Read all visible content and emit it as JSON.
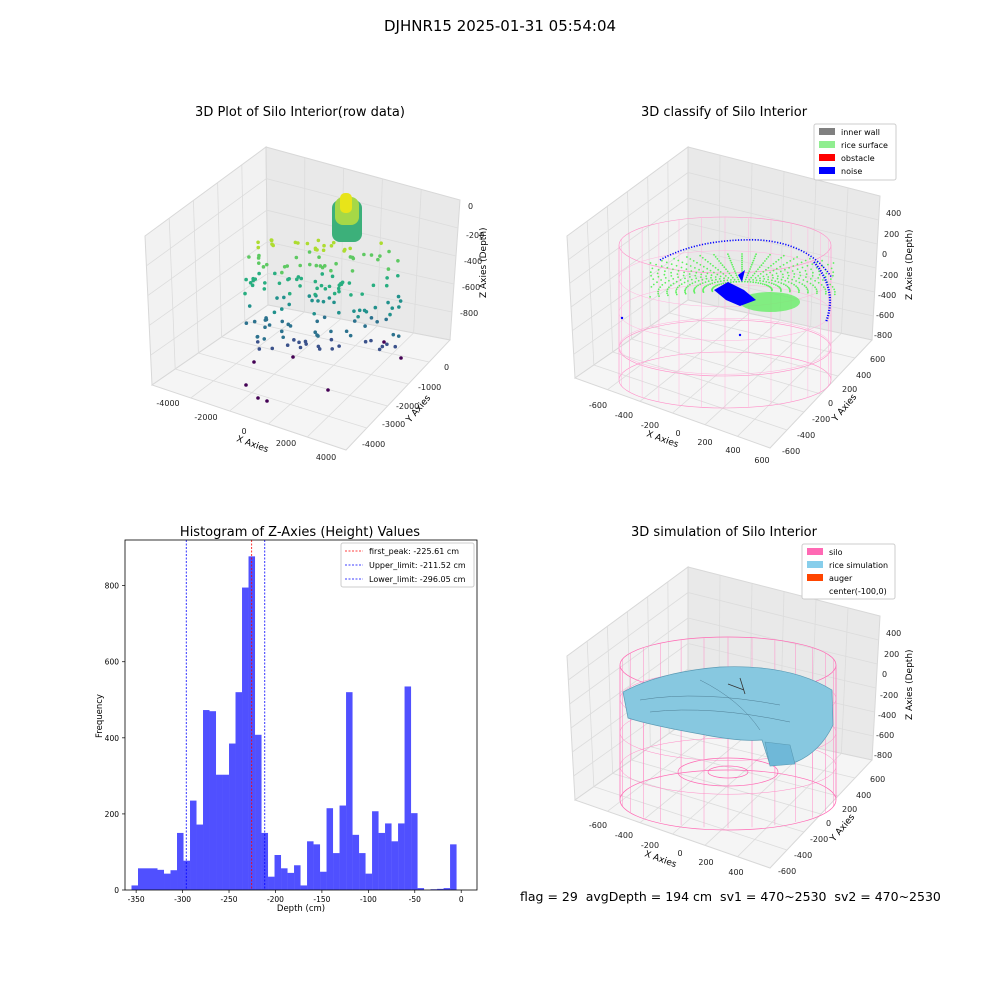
{
  "suptitle": "DJHNR15 2025-01-31 05:54:04",
  "status_text": "flag = 29  avgDepth = 194 cm  sv1 = 470~2530  sv2 = 470~2530",
  "chart_data": [
    {
      "type": "scatter",
      "title": "3D Plot of Silo Interior(row data)",
      "xlabel": "X Axies",
      "ylabel": "Y Axies",
      "zlabel": "Z Axies (Depth)",
      "xticks": [
        "-4000",
        "-2000",
        "0",
        "2000",
        "4000"
      ],
      "yticks": [
        "0",
        "-1000",
        "-2000",
        "-3000",
        "-4000"
      ],
      "zticks": [
        "0",
        "-200",
        "-400",
        "-600",
        "-800"
      ],
      "colormap": "viridis",
      "grid": true
    },
    {
      "type": "scatter",
      "title": "3D classify of Silo Interior",
      "xlabel": "X Axies",
      "ylabel": "Y Axies",
      "zlabel": "Z Axies (Depth)",
      "xticks": [
        "-600",
        "-400",
        "-200",
        "0",
        "200",
        "400",
        "600"
      ],
      "yticks": [
        "600",
        "400",
        "200",
        "0",
        "-200",
        "-400",
        "-600"
      ],
      "zticks": [
        "400",
        "200",
        "0",
        "-200",
        "-400",
        "-600",
        "-800"
      ],
      "legend_position": "top-right",
      "legend": [
        {
          "label": "inner wall",
          "color": "#808080"
        },
        {
          "label": "rice surface",
          "color": "#90ee90"
        },
        {
          "label": "obstacle",
          "color": "#ff0000"
        },
        {
          "label": "noise",
          "color": "#0000ff"
        }
      ],
      "grid": true
    },
    {
      "type": "bar",
      "title": "Histogram of Z-Axies (Height) Values",
      "xlabel": "Depth (cm)",
      "ylabel": "Frequency",
      "xlim": [
        -362,
        17
      ],
      "ylim": [
        0,
        920
      ],
      "xticks": [
        -350,
        -300,
        -250,
        -200,
        -150,
        -100,
        -50,
        0
      ],
      "yticks": [
        0,
        200,
        400,
        600,
        800
      ],
      "bar_color": "#5050ff",
      "bins": [
        {
          "x0": -355,
          "x1": -348,
          "value": 12
        },
        {
          "x0": -348,
          "x1": -341,
          "value": 57
        },
        {
          "x0": -341,
          "x1": -334,
          "value": 57
        },
        {
          "x0": -334,
          "x1": -327,
          "value": 57
        },
        {
          "x0": -327,
          "x1": -320,
          "value": 53
        },
        {
          "x0": -320,
          "x1": -313,
          "value": 43
        },
        {
          "x0": -313,
          "x1": -306,
          "value": 52
        },
        {
          "x0": -306,
          "x1": -299,
          "value": 150
        },
        {
          "x0": -299,
          "x1": -292,
          "value": 77
        },
        {
          "x0": -292,
          "x1": -285,
          "value": 235
        },
        {
          "x0": -285,
          "x1": -278,
          "value": 172
        },
        {
          "x0": -278,
          "x1": -271,
          "value": 473
        },
        {
          "x0": -271,
          "x1": -264,
          "value": 470
        },
        {
          "x0": -264,
          "x1": -257,
          "value": 303
        },
        {
          "x0": -257,
          "x1": -250,
          "value": 303
        },
        {
          "x0": -250,
          "x1": -243,
          "value": 385
        },
        {
          "x0": -243,
          "x1": -236,
          "value": 520
        },
        {
          "x0": -236,
          "x1": -229,
          "value": 795
        },
        {
          "x0": -229,
          "x1": -222,
          "value": 877
        },
        {
          "x0": -222,
          "x1": -215,
          "value": 408
        },
        {
          "x0": -215,
          "x1": -208,
          "value": 150
        },
        {
          "x0": -208,
          "x1": -201,
          "value": 35
        },
        {
          "x0": -201,
          "x1": -194,
          "value": 92
        },
        {
          "x0": -194,
          "x1": -187,
          "value": 57
        },
        {
          "x0": -187,
          "x1": -180,
          "value": 45
        },
        {
          "x0": -180,
          "x1": -173,
          "value": 65
        },
        {
          "x0": -173,
          "x1": -166,
          "value": 12
        },
        {
          "x0": -166,
          "x1": -159,
          "value": 128
        },
        {
          "x0": -159,
          "x1": -152,
          "value": 120
        },
        {
          "x0": -152,
          "x1": -145,
          "value": 48
        },
        {
          "x0": -145,
          "x1": -138,
          "value": 215
        },
        {
          "x0": -138,
          "x1": -131,
          "value": 97
        },
        {
          "x0": -131,
          "x1": -124,
          "value": 222
        },
        {
          "x0": -124,
          "x1": -117,
          "value": 520
        },
        {
          "x0": -117,
          "x1": -110,
          "value": 145
        },
        {
          "x0": -110,
          "x1": -103,
          "value": 97
        },
        {
          "x0": -103,
          "x1": -96,
          "value": 43
        },
        {
          "x0": -96,
          "x1": -89,
          "value": 207
        },
        {
          "x0": -89,
          "x1": -82,
          "value": 150
        },
        {
          "x0": -82,
          "x1": -75,
          "value": 175
        },
        {
          "x0": -75,
          "x1": -68,
          "value": 128
        },
        {
          "x0": -68,
          "x1": -61,
          "value": 175
        },
        {
          "x0": -61,
          "x1": -54,
          "value": 535
        },
        {
          "x0": -54,
          "x1": -47,
          "value": 202
        },
        {
          "x0": -47,
          "x1": -40,
          "value": 5
        },
        {
          "x0": -40,
          "x1": -33,
          "value": 0
        },
        {
          "x0": -33,
          "x1": -26,
          "value": 2
        },
        {
          "x0": -26,
          "x1": -19,
          "value": 3
        },
        {
          "x0": -19,
          "x1": -12,
          "value": 5
        },
        {
          "x0": -12,
          "x1": -5,
          "value": 120
        }
      ],
      "vlines": [
        {
          "label": "first_peak: -225.61 cm",
          "x": -225.61,
          "color": "#ff0000"
        },
        {
          "label": "Upper_limit: -211.52 cm",
          "x": -211.52,
          "color": "#0000ff"
        },
        {
          "label": "Lower_limit: -296.05 cm",
          "x": -296.05,
          "color": "#0000ff"
        }
      ],
      "legend_position": "top-right",
      "grid": false
    },
    {
      "type": "surface",
      "title": "3D simulation of Silo Interior",
      "xlabel": "X Axies",
      "ylabel": "Y Axies",
      "zlabel": "Z Axies (Depth)",
      "xticks": [
        "-600",
        "-400",
        "-200",
        "0",
        "200",
        "400"
      ],
      "yticks": [
        "600",
        "400",
        "200",
        "0",
        "-200",
        "-400",
        "-600"
      ],
      "zticks": [
        "400",
        "200",
        "0",
        "-200",
        "-400",
        "-600",
        "-800"
      ],
      "legend_position": "top-right",
      "legend": [
        {
          "label": "silo",
          "color": "#ff69b4"
        },
        {
          "label": "rice simulation",
          "color": "#87ceeb"
        },
        {
          "label": "auger",
          "color": "#ff4500"
        },
        {
          "label": "center(-100,0)",
          "color": "#ffffff"
        }
      ],
      "grid": true
    }
  ]
}
